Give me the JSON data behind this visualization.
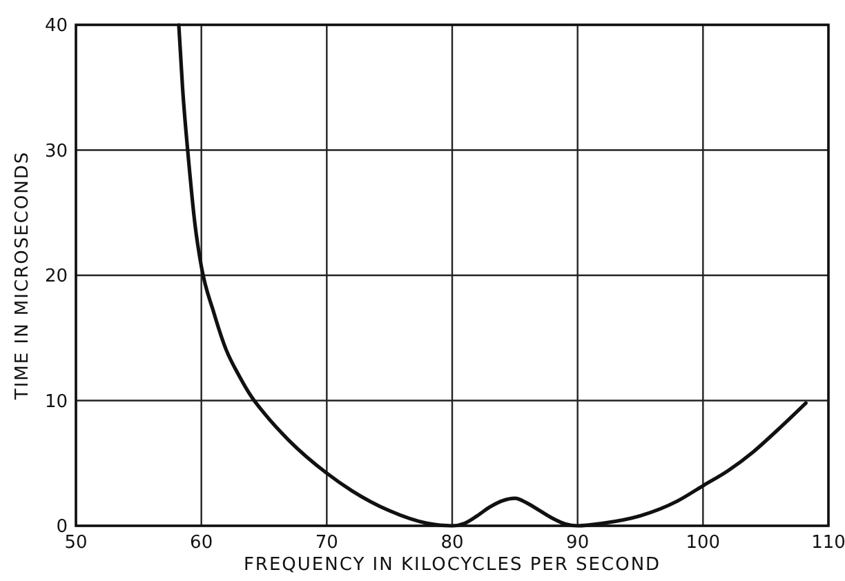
{
  "chart_data": {
    "type": "line",
    "xlabel": "FREQUENCY IN KILOCYCLES PER SECOND",
    "ylabel": "TIME IN MICROSECONDS",
    "xlim": [
      50,
      110
    ],
    "xticks": [
      50,
      60,
      70,
      80,
      90,
      100,
      110
    ],
    "ylim": [
      0,
      40
    ],
    "yticks": [
      0,
      10,
      20,
      30,
      40
    ],
    "grid": true,
    "line_style": "solid",
    "series": [
      {
        "color": "#111111",
        "x": [
          58.2,
          58.5,
          59,
          59.5,
          60,
          61,
          62,
          63,
          64,
          65,
          67,
          70,
          72,
          75,
          78,
          80,
          81,
          82,
          83,
          84,
          85,
          86,
          87,
          88,
          89,
          90,
          92,
          95,
          98,
          100,
          102,
          104,
          106,
          108.2
        ],
        "values": [
          40,
          35,
          29,
          24,
          20.7,
          17,
          14,
          12,
          10.3,
          9,
          6.8,
          4.2,
          2.8,
          1.2,
          0.2,
          0,
          0.2,
          0.8,
          1.5,
          2,
          2.2,
          1.8,
          1.2,
          0.6,
          0.15,
          0,
          0.2,
          0.8,
          2,
          3.2,
          4.4,
          5.9,
          7.7,
          9.8
        ]
      }
    ]
  }
}
